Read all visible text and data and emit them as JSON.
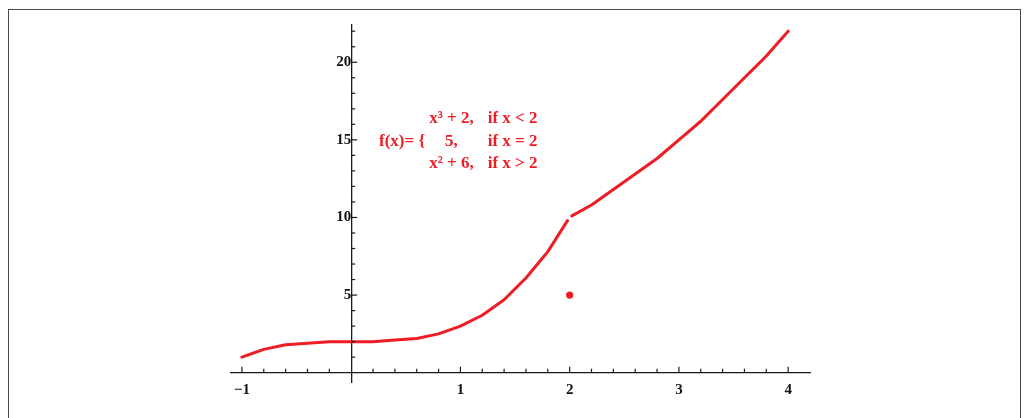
{
  "chart_data": {
    "type": "line",
    "series": [
      {
        "type": "line",
        "color": "#ee1c25",
        "x": [
          -1,
          -0.8,
          -0.6,
          -0.4,
          -0.2,
          0,
          0.2,
          0.4,
          0.6,
          0.8,
          1,
          1.2,
          1.4,
          1.6,
          1.8,
          1.98
        ],
        "values": [
          1,
          1.5,
          1.8,
          1.9,
          2,
          2,
          2,
          2.1,
          2.2,
          2.5,
          3,
          3.7,
          4.7,
          6.1,
          7.8,
          9.8
        ]
      },
      {
        "type": "line",
        "color": "#ee1c25",
        "x": [
          2.02,
          2.2,
          2.4,
          2.6,
          2.8,
          3,
          3.2,
          3.4,
          3.6,
          3.8,
          4
        ],
        "values": [
          10.1,
          10.8,
          11.8,
          12.8,
          13.8,
          15,
          16.2,
          17.6,
          19,
          20.4,
          22
        ]
      },
      {
        "type": "scatter",
        "color": "#ee1c25",
        "marker": "circle",
        "x": [
          2
        ],
        "values": [
          5
        ]
      }
    ],
    "xlim": [
      -1.1,
      4.2
    ],
    "ylim": [
      -0.6,
      22.4
    ],
    "xticks": [
      {
        "value": -1,
        "label": "−1"
      },
      {
        "value": -0.8,
        "label": null
      },
      {
        "value": -0.6,
        "label": null
      },
      {
        "value": -0.4,
        "label": null
      },
      {
        "value": -0.2,
        "label": null
      },
      {
        "value": 0.2,
        "label": null
      },
      {
        "value": 0.4,
        "label": null
      },
      {
        "value": 0.6,
        "label": null
      },
      {
        "value": 0.8,
        "label": null
      },
      1,
      {
        "value": 1.2,
        "label": null
      },
      {
        "value": 1.4,
        "label": null
      },
      {
        "value": 1.6,
        "label": null
      },
      {
        "value": 1.8,
        "label": null
      },
      2,
      {
        "value": 2.2,
        "label": null
      },
      {
        "value": 2.4,
        "label": null
      },
      {
        "value": 2.6,
        "label": null
      },
      {
        "value": 2.8,
        "label": null
      },
      3,
      {
        "value": 3.2,
        "label": null
      },
      {
        "value": 3.4,
        "label": null
      },
      {
        "value": 3.6,
        "label": null
      },
      {
        "value": 3.8,
        "label": null
      },
      4
    ],
    "yticks": [
      {
        "value": 1,
        "label": null
      },
      {
        "value": 2,
        "label": null
      },
      {
        "value": 3,
        "label": null
      },
      {
        "value": 4,
        "label": null
      },
      5,
      {
        "value": 6,
        "label": null
      },
      {
        "value": 7,
        "label": null
      },
      {
        "value": 8,
        "label": null
      },
      {
        "value": 9,
        "label": null
      },
      10,
      {
        "value": 11,
        "label": null
      },
      {
        "value": 12,
        "label": null
      },
      {
        "value": 13,
        "label": null
      },
      {
        "value": 14,
        "label": null
      },
      15,
      {
        "value": 16,
        "label": null
      },
      {
        "value": 17,
        "label": null
      },
      {
        "value": 18,
        "label": null
      },
      {
        "value": 19,
        "label": null
      },
      20,
      {
        "value": 21,
        "label": null
      },
      {
        "value": 22,
        "label": null
      }
    ],
    "annotations": [
      "f(x)= {",
      "x³ + 2,",
      "if x < 2",
      "5,",
      "if x = 2",
      "x² + 6,",
      "if x > 2"
    ],
    "line_style": "solid"
  }
}
